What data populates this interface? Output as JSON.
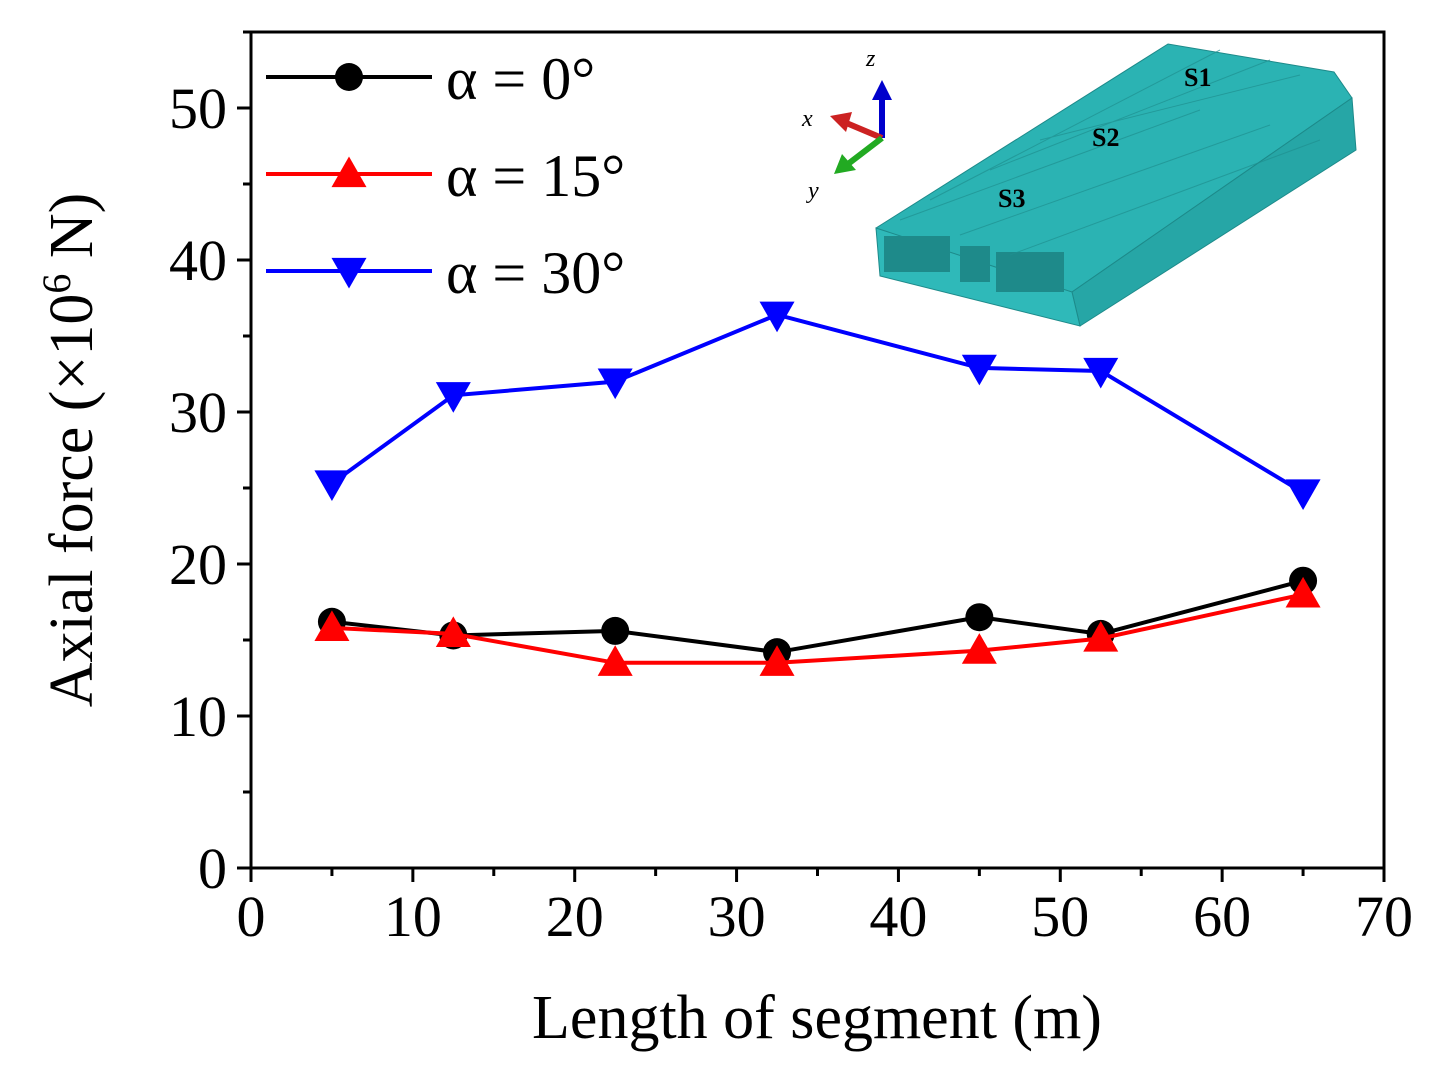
{
  "chart_data": {
    "type": "line",
    "xlabel": "Length of segment (m)",
    "ylabel_prefix": "Axial force (×10",
    "ylabel_exp": "6",
    "ylabel_suffix": " N)",
    "xlim": [
      0,
      70
    ],
    "ylim": [
      0,
      55
    ],
    "xticks": [
      0,
      10,
      20,
      30,
      40,
      50,
      60,
      70
    ],
    "yticks": [
      0,
      10,
      20,
      30,
      40,
      50
    ],
    "x": [
      5,
      12.5,
      22.5,
      32.5,
      45,
      52.5,
      65
    ],
    "grid": false,
    "legend_position": "top-left",
    "series": [
      {
        "name": "α = 0°",
        "color": "#000000",
        "marker": "circle",
        "values": [
          16.2,
          15.3,
          15.6,
          14.2,
          16.5,
          15.4,
          18.9
        ]
      },
      {
        "name": "α = 15°",
        "color": "#ff0000",
        "marker": "triangle-up",
        "values": [
          15.8,
          15.4,
          13.5,
          13.5,
          14.3,
          15.1,
          18.0
        ]
      },
      {
        "name": "α = 30°",
        "color": "#0000ff",
        "marker": "triangle-down",
        "values": [
          25.3,
          31.1,
          32.0,
          36.4,
          32.9,
          32.7,
          24.7
        ]
      }
    ]
  },
  "inset": {
    "description_labels": [
      "S1",
      "S2",
      "S3"
    ],
    "axis_letters": {
      "x": "x",
      "y": "y",
      "z": "z"
    },
    "mesh_color": "#1aa0a0"
  }
}
